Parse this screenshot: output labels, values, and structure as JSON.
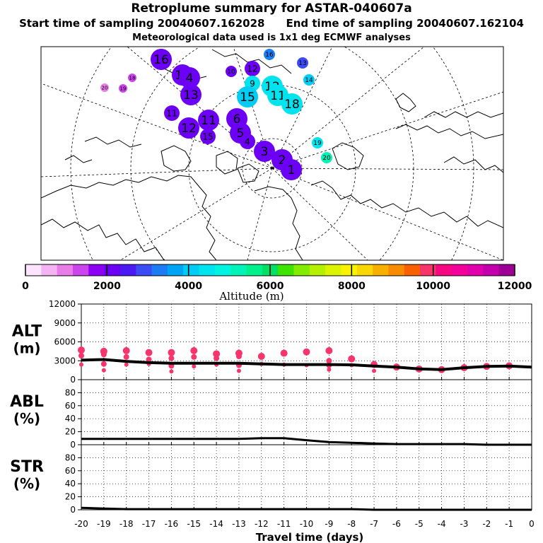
{
  "header": {
    "title": "Retroplume summary for ASTAR-040607a",
    "start_label": "Start time of sampling 20040607.162028",
    "end_label": "End time of sampling 20040607.162104",
    "met_label": "Meteorological data used is 1x1 deg ECMWF analyses"
  },
  "map": {
    "clusters": [
      {
        "label": "16",
        "alt": 2000,
        "size": "l"
      },
      {
        "label": "15",
        "alt": 2000,
        "size": "l"
      },
      {
        "label": "4",
        "alt": 2000,
        "size": "l"
      },
      {
        "label": "13",
        "alt": 2000,
        "size": "l"
      },
      {
        "label": "11",
        "alt": 2000,
        "size": "m"
      },
      {
        "label": "12",
        "alt": 2000,
        "size": "l"
      },
      {
        "label": "11",
        "alt": 2000,
        "size": "l"
      },
      {
        "label": "15",
        "alt": 2000,
        "size": "m"
      },
      {
        "label": "6",
        "alt": 2000,
        "size": "l"
      },
      {
        "label": "5",
        "alt": 2000,
        "size": "l"
      },
      {
        "label": "4",
        "alt": 2000,
        "size": "m"
      },
      {
        "label": "3",
        "alt": 2000,
        "size": "l"
      },
      {
        "label": "2",
        "alt": 2000,
        "size": "l"
      },
      {
        "label": "1",
        "alt": 2000,
        "size": "l"
      },
      {
        "label": "12",
        "alt": 2300,
        "size": "m"
      },
      {
        "label": "10",
        "alt": 2300,
        "size": "s"
      },
      {
        "label": "9",
        "alt": 4500,
        "size": "m"
      },
      {
        "label": "12",
        "alt": 4500,
        "size": "l"
      },
      {
        "label": "11",
        "alt": 4500,
        "size": "l"
      },
      {
        "label": "18",
        "alt": 4500,
        "size": "l"
      },
      {
        "label": "15",
        "alt": 4000,
        "size": "l"
      },
      {
        "label": "13",
        "alt": 3000,
        "size": "s"
      },
      {
        "label": "14",
        "alt": 4000,
        "size": "s"
      },
      {
        "label": "16",
        "alt": 3300,
        "size": "s"
      },
      {
        "label": "19",
        "alt": 4500,
        "size": "s"
      },
      {
        "label": "20",
        "alt": 5300,
        "size": "s"
      },
      {
        "label": "20",
        "alt": 1100,
        "size": "xs"
      },
      {
        "label": "19",
        "alt": 1300,
        "size": "xs"
      },
      {
        "label": "18",
        "alt": 1300,
        "size": "xs"
      }
    ]
  },
  "colorbar": {
    "tick_labels": [
      "0",
      "2000",
      "4000",
      "6000",
      "8000",
      "10000",
      "12000"
    ],
    "title": "Altitude (m)",
    "colors": [
      "#fce4fc",
      "#f4b4f4",
      "#e87ce8",
      "#cc44ec",
      "#8c00f4",
      "#6c00f4",
      "#4c18f4",
      "#3c4cf4",
      "#1c7cf4",
      "#00a4f4",
      "#00ccf4",
      "#00e4f0",
      "#00f4e0",
      "#00f4b8",
      "#00f08c",
      "#00e064",
      "#3ce400",
      "#84ec00",
      "#b4f000",
      "#dcf400",
      "#f8f400",
      "#f8d800",
      "#f8b000",
      "#f88c00",
      "#f86000",
      "#f8346c",
      "#f80880",
      "#f4009c",
      "#e000ac",
      "#c400ac",
      "#9c0094"
    ]
  },
  "panels": [
    {
      "label": "ALT",
      "unit": "(m)",
      "yticks": [
        "12000",
        "9000",
        "6000",
        "3000",
        "0"
      ]
    },
    {
      "label": "ABL",
      "unit": "(%)",
      "yticks": [
        "80",
        "60",
        "40",
        "20",
        "0"
      ]
    },
    {
      "label": "STR",
      "unit": "(%)",
      "yticks": [
        "80",
        "60",
        "40",
        "20",
        "0"
      ]
    }
  ],
  "xaxis": {
    "ticks": [
      "-20",
      "-19",
      "-18",
      "-17",
      "-16",
      "-15",
      "-14",
      "-13",
      "-12",
      "-11",
      "-10",
      "-9",
      "-8",
      "-7",
      "-6",
      "-5",
      "-4",
      "-3",
      "-2",
      "-1",
      "0"
    ],
    "title": "Travel time (days)"
  },
  "chart_data": [
    {
      "type": "line",
      "name": "ALT",
      "ylabel": "ALT (m)",
      "xlabel": "Travel time (days)",
      "xlim": [
        -20,
        0
      ],
      "ylim": [
        0,
        12000
      ],
      "x": [
        -20,
        -19,
        -18,
        -17,
        -16,
        -15,
        -14,
        -13,
        -12,
        -11,
        -10,
        -9,
        -8,
        -7,
        -6,
        -5,
        -4,
        -3,
        -2,
        -1,
        0
      ],
      "mean_altitude": [
        3100,
        3200,
        2900,
        2700,
        2600,
        2600,
        2600,
        2600,
        2500,
        2400,
        2400,
        2400,
        2350,
        2150,
        2000,
        1700,
        1600,
        1900,
        2100,
        2150,
        2000
      ],
      "cluster_points": [
        {
          "x": -20,
          "y": [
            4700,
            3800,
            2400
          ]
        },
        {
          "x": -19,
          "y": [
            4500,
            4000,
            2500,
            1500
          ]
        },
        {
          "x": -18,
          "y": [
            4600,
            3600,
            2400
          ]
        },
        {
          "x": -17,
          "y": [
            4300,
            3200,
            2500
          ]
        },
        {
          "x": -16,
          "y": [
            4300,
            3400,
            2200,
            1300
          ]
        },
        {
          "x": -15,
          "y": [
            4600,
            3600,
            2100
          ]
        },
        {
          "x": -14,
          "y": [
            4100,
            3400,
            2400
          ]
        },
        {
          "x": -13,
          "y": [
            4200,
            3700,
            2300,
            1400
          ]
        },
        {
          "x": -12,
          "y": [
            3700,
            2500
          ]
        },
        {
          "x": -11,
          "y": [
            4200,
            2400
          ]
        },
        {
          "x": -10,
          "y": [
            4400,
            2300
          ]
        },
        {
          "x": -9,
          "y": [
            4600,
            3000,
            2300,
            1600
          ]
        },
        {
          "x": -8,
          "y": [
            3300,
            2300
          ]
        },
        {
          "x": -7,
          "y": [
            2400,
            1400
          ]
        },
        {
          "x": -6,
          "y": [
            2000
          ]
        },
        {
          "x": -5,
          "y": [
            1700
          ]
        },
        {
          "x": -4,
          "y": [
            1600
          ]
        },
        {
          "x": -3,
          "y": [
            1900
          ]
        },
        {
          "x": -2,
          "y": [
            2100
          ]
        },
        {
          "x": -1,
          "y": [
            2200
          ]
        }
      ],
      "point_color": "#f8346c"
    },
    {
      "type": "line",
      "name": "ABL",
      "ylabel": "ABL (%)",
      "xlabel": "Travel time (days)",
      "xlim": [
        -20,
        0
      ],
      "ylim": [
        0,
        100
      ],
      "x": [
        -20,
        -19,
        -18,
        -17,
        -16,
        -15,
        -14,
        -13,
        -12,
        -11,
        -10,
        -9,
        -8,
        -7,
        -6,
        -5,
        -4,
        -3,
        -2,
        -1,
        0
      ],
      "values": [
        9,
        9,
        9,
        9,
        9,
        9,
        9,
        9,
        10,
        10,
        7,
        4,
        3,
        2,
        1,
        1,
        1,
        1,
        0,
        0,
        0
      ]
    },
    {
      "type": "line",
      "name": "STR",
      "ylabel": "STR (%)",
      "xlabel": "Travel time (days)",
      "xlim": [
        -20,
        0
      ],
      "ylim": [
        0,
        100
      ],
      "x": [
        -20,
        -19,
        -18,
        -17,
        -16,
        -15,
        -14,
        -13,
        -12,
        -11,
        -10,
        -9,
        -8,
        -7,
        -6,
        -5,
        -4,
        -3,
        -2,
        -1,
        0
      ],
      "values": [
        3,
        2,
        1,
        1,
        1,
        1,
        1,
        1,
        1,
        1,
        1,
        1,
        1,
        0,
        0,
        0,
        0,
        0,
        0,
        0,
        0
      ]
    }
  ]
}
